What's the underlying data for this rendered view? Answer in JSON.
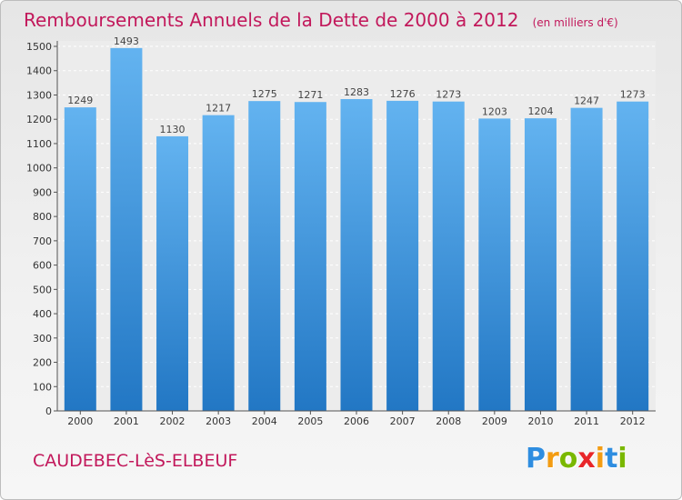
{
  "chart_data": {
    "type": "bar",
    "title": "Remboursements Annuels de la Dette de 2000 à 2012",
    "subtitle": "(en milliers d'€)",
    "categories": [
      "2000",
      "2001",
      "2002",
      "2003",
      "2004",
      "2005",
      "2006",
      "2007",
      "2008",
      "2009",
      "2010",
      "2011",
      "2012"
    ],
    "values": [
      1249,
      1493,
      1130,
      1217,
      1275,
      1271,
      1283,
      1276,
      1273,
      1203,
      1204,
      1247,
      1273
    ],
    "ylim": [
      0,
      1500
    ],
    "yticks": [
      0,
      100,
      200,
      300,
      400,
      500,
      600,
      700,
      800,
      900,
      1000,
      1100,
      1200,
      1300,
      1400,
      1500
    ],
    "grid": true,
    "xlabel": "",
    "ylabel": ""
  },
  "footer": {
    "city": "CAUDEBEC-LèS-ELBEUF",
    "logo_letters": [
      "P",
      "r",
      "o",
      "x",
      "i",
      "t",
      "i"
    ],
    "logo_colors": [
      "#2e8de0",
      "#f39c12",
      "#7ab800",
      "#e8262a",
      "#f39c12",
      "#2e8de0",
      "#7ab800"
    ]
  },
  "colors": {
    "bar_top": "#63b3f0",
    "bar_bottom": "#2277c4",
    "accent": "#c2185b"
  }
}
